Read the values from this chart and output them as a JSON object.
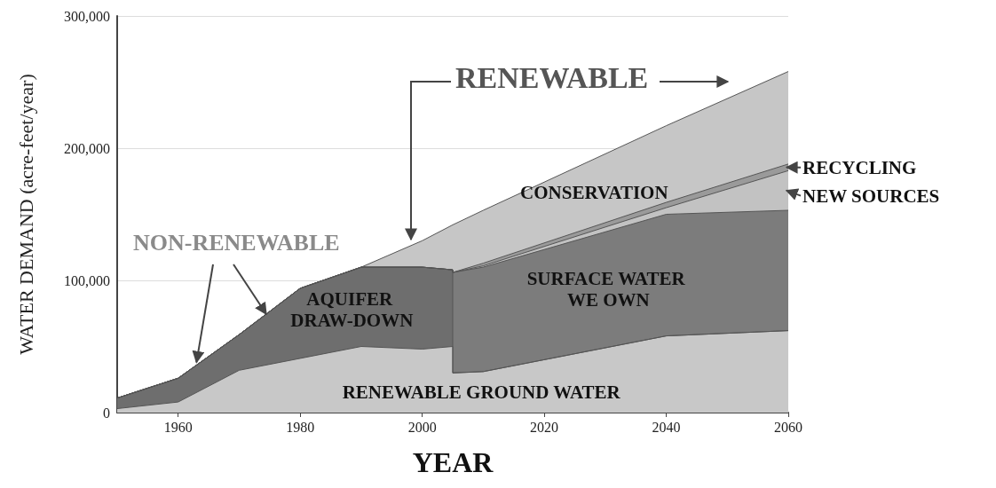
{
  "chart_data": {
    "type": "area",
    "stacked": true,
    "xlabel": "YEAR",
    "ylabel": "WATER DEMAND (acre-feet/year)",
    "x": [
      1950,
      1960,
      1970,
      1980,
      1990,
      2000,
      2005,
      2005,
      2010,
      2040,
      2060
    ],
    "series": [
      {
        "name": "RENEWABLE GROUND WATER",
        "color": "#c8c8c8",
        "values": [
          3000,
          8000,
          32000,
          41000,
          50000,
          48000,
          50000,
          30000,
          31000,
          58000,
          62000
        ]
      },
      {
        "name": "AQUIFER DRAW-DOWN",
        "color": "#6e6e6e",
        "values": [
          8000,
          18000,
          27000,
          53000,
          60000,
          62000,
          58000,
          0,
          0,
          0,
          0
        ]
      },
      {
        "name": "SURFACE WATER WE OWN",
        "color": "#7c7c7c",
        "values": [
          0,
          0,
          0,
          0,
          0,
          0,
          0,
          76000,
          79000,
          92000,
          91000
        ]
      },
      {
        "name": "NEW SOURCES",
        "color": "#c2c2c2",
        "values": [
          0,
          0,
          0,
          0,
          0,
          0,
          0,
          0,
          1000,
          5000,
          30000
        ]
      },
      {
        "name": "RECYCLING",
        "color": "#9a9a9a",
        "values": [
          0,
          0,
          0,
          0,
          0,
          0,
          0,
          0,
          2000,
          4000,
          5000
        ]
      },
      {
        "name": "CONSERVATION",
        "color": "#c6c6c6",
        "values": [
          0,
          0,
          0,
          0,
          0,
          20000,
          34000,
          36000,
          40000,
          58000,
          70000
        ]
      }
    ],
    "xlim": [
      1950,
      2060
    ],
    "xticks": [
      1960,
      1980,
      2000,
      2020,
      2040,
      2060
    ],
    "ylim": [
      0,
      300000
    ],
    "yticks": [
      0,
      {
        "value": 100000,
        "label": "100,000"
      },
      {
        "value": 200000,
        "label": "200,000"
      },
      {
        "value": 300000,
        "label": "300,000"
      }
    ],
    "grid": "y",
    "annotations": [
      "RENEWABLE",
      {
        "text": "NON-RENEWABLE",
        "x": 1963,
        "y": 38000
      }
    ]
  }
}
